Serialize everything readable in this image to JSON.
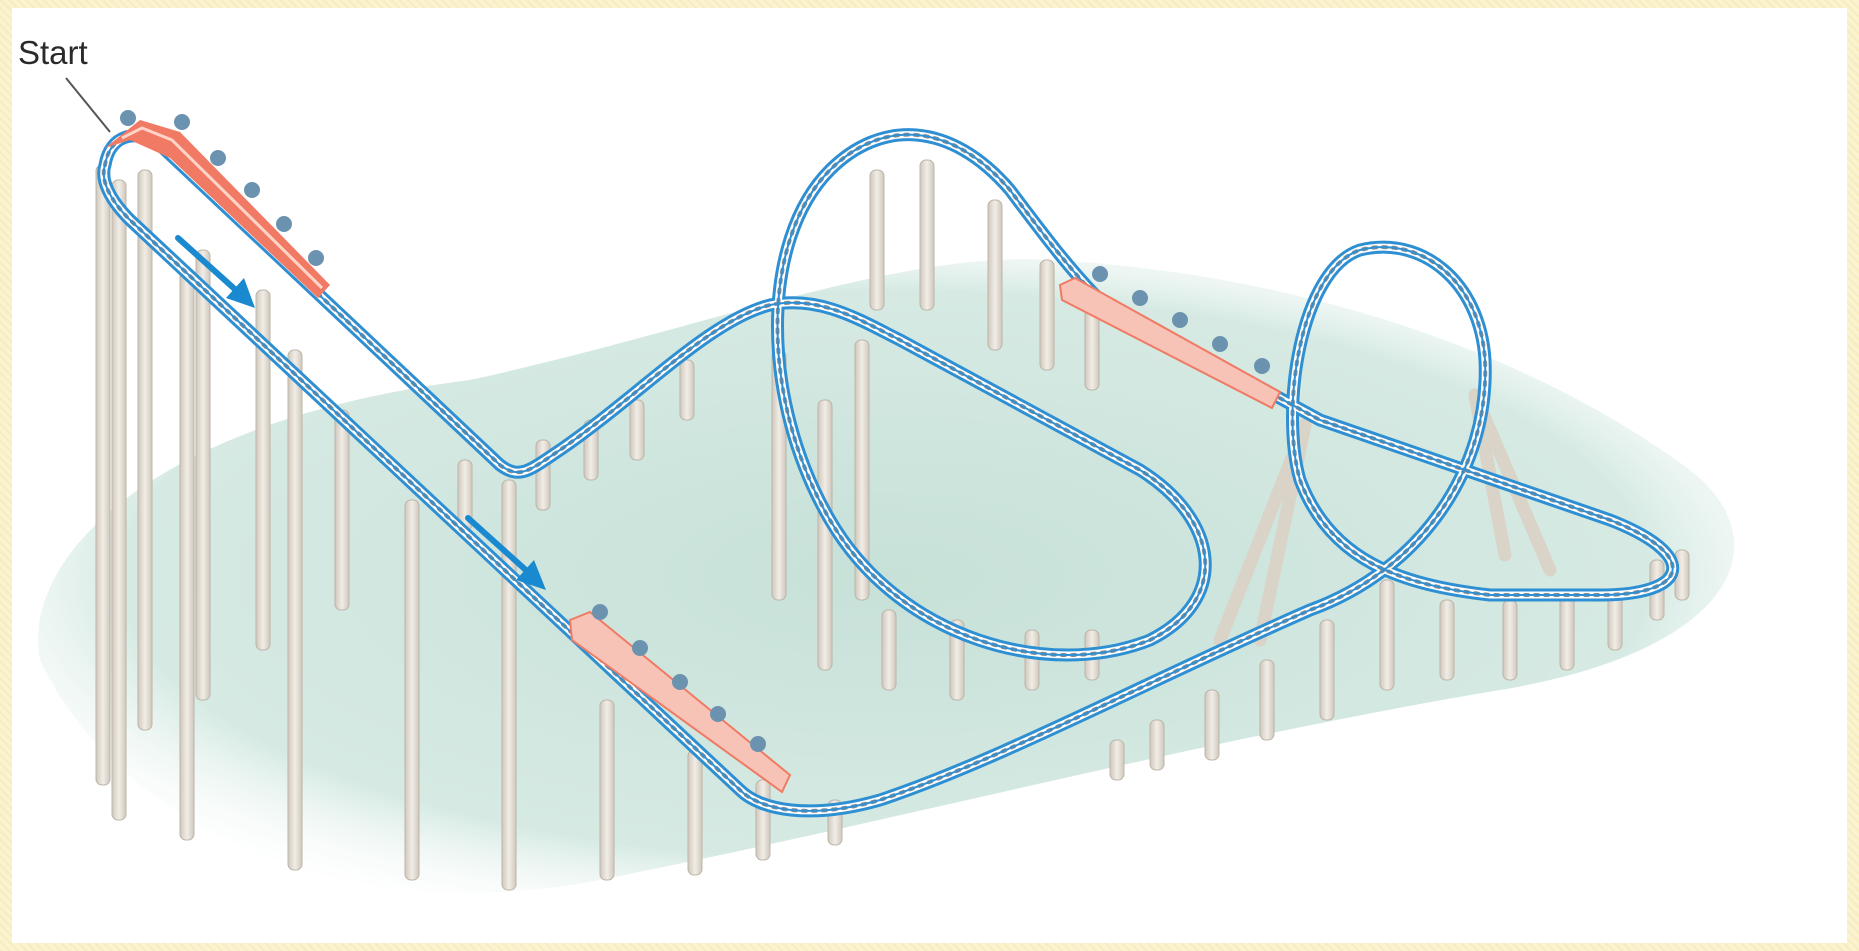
{
  "diagram": {
    "start_label": "Start"
  },
  "colors": {
    "background": "#fbf3cf",
    "ground": "#cfe6de",
    "track_rail": "#3b9bd8",
    "track_tie": "#8d8d8d",
    "support_post": "#e6e1d9",
    "car_front": "#f07a63",
    "car_rear": "#f7c3b6",
    "rider": "#6b93b0",
    "arrow": "#1a8ad0"
  },
  "icons": [
    "roller-coaster-track",
    "coaster-car",
    "direction-arrow"
  ]
}
